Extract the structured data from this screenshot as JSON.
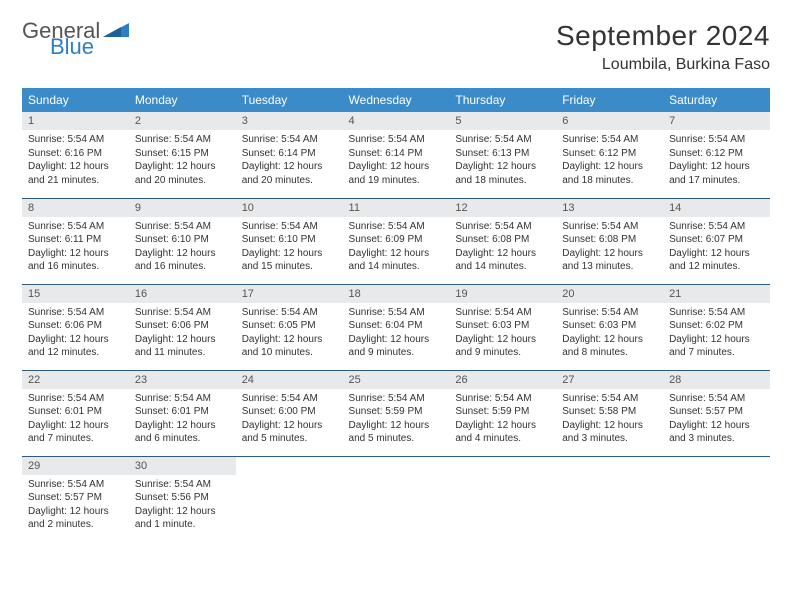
{
  "brand": {
    "word1": "General",
    "word2": "Blue",
    "triangle_color": "#2d7fc4"
  },
  "title": "September 2024",
  "location": "Loumbila, Burkina Faso",
  "colors": {
    "header_bg": "#3b8bc8",
    "header_text": "#ffffff",
    "daynum_bg": "#e8e9ea",
    "row_border": "#2d5a82",
    "body_text": "#333333"
  },
  "typography": {
    "title_fontsize": 28,
    "location_fontsize": 16,
    "dayheader_fontsize": 12,
    "daynum_fontsize": 11,
    "cell_fontsize": 10
  },
  "day_headers": [
    "Sunday",
    "Monday",
    "Tuesday",
    "Wednesday",
    "Thursday",
    "Friday",
    "Saturday"
  ],
  "weeks": [
    [
      {
        "n": "1",
        "sr": "Sunrise: 5:54 AM",
        "ss": "Sunset: 6:16 PM",
        "d1": "Daylight: 12 hours",
        "d2": "and 21 minutes."
      },
      {
        "n": "2",
        "sr": "Sunrise: 5:54 AM",
        "ss": "Sunset: 6:15 PM",
        "d1": "Daylight: 12 hours",
        "d2": "and 20 minutes."
      },
      {
        "n": "3",
        "sr": "Sunrise: 5:54 AM",
        "ss": "Sunset: 6:14 PM",
        "d1": "Daylight: 12 hours",
        "d2": "and 20 minutes."
      },
      {
        "n": "4",
        "sr": "Sunrise: 5:54 AM",
        "ss": "Sunset: 6:14 PM",
        "d1": "Daylight: 12 hours",
        "d2": "and 19 minutes."
      },
      {
        "n": "5",
        "sr": "Sunrise: 5:54 AM",
        "ss": "Sunset: 6:13 PM",
        "d1": "Daylight: 12 hours",
        "d2": "and 18 minutes."
      },
      {
        "n": "6",
        "sr": "Sunrise: 5:54 AM",
        "ss": "Sunset: 6:12 PM",
        "d1": "Daylight: 12 hours",
        "d2": "and 18 minutes."
      },
      {
        "n": "7",
        "sr": "Sunrise: 5:54 AM",
        "ss": "Sunset: 6:12 PM",
        "d1": "Daylight: 12 hours",
        "d2": "and 17 minutes."
      }
    ],
    [
      {
        "n": "8",
        "sr": "Sunrise: 5:54 AM",
        "ss": "Sunset: 6:11 PM",
        "d1": "Daylight: 12 hours",
        "d2": "and 16 minutes."
      },
      {
        "n": "9",
        "sr": "Sunrise: 5:54 AM",
        "ss": "Sunset: 6:10 PM",
        "d1": "Daylight: 12 hours",
        "d2": "and 16 minutes."
      },
      {
        "n": "10",
        "sr": "Sunrise: 5:54 AM",
        "ss": "Sunset: 6:10 PM",
        "d1": "Daylight: 12 hours",
        "d2": "and 15 minutes."
      },
      {
        "n": "11",
        "sr": "Sunrise: 5:54 AM",
        "ss": "Sunset: 6:09 PM",
        "d1": "Daylight: 12 hours",
        "d2": "and 14 minutes."
      },
      {
        "n": "12",
        "sr": "Sunrise: 5:54 AM",
        "ss": "Sunset: 6:08 PM",
        "d1": "Daylight: 12 hours",
        "d2": "and 14 minutes."
      },
      {
        "n": "13",
        "sr": "Sunrise: 5:54 AM",
        "ss": "Sunset: 6:08 PM",
        "d1": "Daylight: 12 hours",
        "d2": "and 13 minutes."
      },
      {
        "n": "14",
        "sr": "Sunrise: 5:54 AM",
        "ss": "Sunset: 6:07 PM",
        "d1": "Daylight: 12 hours",
        "d2": "and 12 minutes."
      }
    ],
    [
      {
        "n": "15",
        "sr": "Sunrise: 5:54 AM",
        "ss": "Sunset: 6:06 PM",
        "d1": "Daylight: 12 hours",
        "d2": "and 12 minutes."
      },
      {
        "n": "16",
        "sr": "Sunrise: 5:54 AM",
        "ss": "Sunset: 6:06 PM",
        "d1": "Daylight: 12 hours",
        "d2": "and 11 minutes."
      },
      {
        "n": "17",
        "sr": "Sunrise: 5:54 AM",
        "ss": "Sunset: 6:05 PM",
        "d1": "Daylight: 12 hours",
        "d2": "and 10 minutes."
      },
      {
        "n": "18",
        "sr": "Sunrise: 5:54 AM",
        "ss": "Sunset: 6:04 PM",
        "d1": "Daylight: 12 hours",
        "d2": "and 9 minutes."
      },
      {
        "n": "19",
        "sr": "Sunrise: 5:54 AM",
        "ss": "Sunset: 6:03 PM",
        "d1": "Daylight: 12 hours",
        "d2": "and 9 minutes."
      },
      {
        "n": "20",
        "sr": "Sunrise: 5:54 AM",
        "ss": "Sunset: 6:03 PM",
        "d1": "Daylight: 12 hours",
        "d2": "and 8 minutes."
      },
      {
        "n": "21",
        "sr": "Sunrise: 5:54 AM",
        "ss": "Sunset: 6:02 PM",
        "d1": "Daylight: 12 hours",
        "d2": "and 7 minutes."
      }
    ],
    [
      {
        "n": "22",
        "sr": "Sunrise: 5:54 AM",
        "ss": "Sunset: 6:01 PM",
        "d1": "Daylight: 12 hours",
        "d2": "and 7 minutes."
      },
      {
        "n": "23",
        "sr": "Sunrise: 5:54 AM",
        "ss": "Sunset: 6:01 PM",
        "d1": "Daylight: 12 hours",
        "d2": "and 6 minutes."
      },
      {
        "n": "24",
        "sr": "Sunrise: 5:54 AM",
        "ss": "Sunset: 6:00 PM",
        "d1": "Daylight: 12 hours",
        "d2": "and 5 minutes."
      },
      {
        "n": "25",
        "sr": "Sunrise: 5:54 AM",
        "ss": "Sunset: 5:59 PM",
        "d1": "Daylight: 12 hours",
        "d2": "and 5 minutes."
      },
      {
        "n": "26",
        "sr": "Sunrise: 5:54 AM",
        "ss": "Sunset: 5:59 PM",
        "d1": "Daylight: 12 hours",
        "d2": "and 4 minutes."
      },
      {
        "n": "27",
        "sr": "Sunrise: 5:54 AM",
        "ss": "Sunset: 5:58 PM",
        "d1": "Daylight: 12 hours",
        "d2": "and 3 minutes."
      },
      {
        "n": "28",
        "sr": "Sunrise: 5:54 AM",
        "ss": "Sunset: 5:57 PM",
        "d1": "Daylight: 12 hours",
        "d2": "and 3 minutes."
      }
    ],
    [
      {
        "n": "29",
        "sr": "Sunrise: 5:54 AM",
        "ss": "Sunset: 5:57 PM",
        "d1": "Daylight: 12 hours",
        "d2": "and 2 minutes."
      },
      {
        "n": "30",
        "sr": "Sunrise: 5:54 AM",
        "ss": "Sunset: 5:56 PM",
        "d1": "Daylight: 12 hours",
        "d2": "and 1 minute."
      },
      null,
      null,
      null,
      null,
      null
    ]
  ]
}
